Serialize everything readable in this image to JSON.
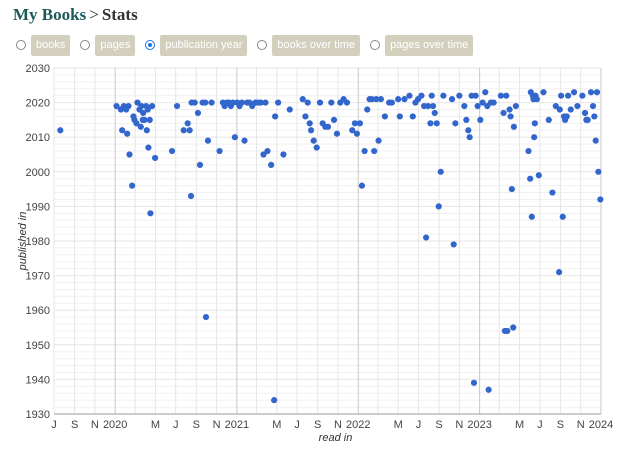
{
  "breadcrumb": {
    "root": "My Books",
    "separator": ">",
    "current": "Stats"
  },
  "tabs": [
    {
      "label": "books",
      "selected": false
    },
    {
      "label": "pages",
      "selected": false
    },
    {
      "label": "publication year",
      "selected": true
    },
    {
      "label": "books over time",
      "selected": false
    },
    {
      "label": "pages over time",
      "selected": false
    }
  ],
  "colors": {
    "point": "#3366cc",
    "grid": "#e6e6e6",
    "major_grid": "#c8c8c8",
    "tab_bg": "#d3cfbd",
    "brand": "#1c5a5a"
  },
  "chart_data": {
    "type": "scatter",
    "title": "",
    "xlabel": "read in",
    "ylabel": "published in",
    "ylim": [
      1930,
      2030
    ],
    "yticks": [
      1930,
      1940,
      1950,
      1960,
      1970,
      1980,
      1990,
      2000,
      2010,
      2020,
      2030
    ],
    "xlim": [
      "2019-07-01",
      "2024-01-01"
    ],
    "xticks": [
      {
        "date": "2019-07-01",
        "label": "J"
      },
      {
        "date": "2019-09-01",
        "label": "S"
      },
      {
        "date": "2019-11-01",
        "label": "N"
      },
      {
        "date": "2020-01-01",
        "label": "2020"
      },
      {
        "date": "2020-03-01",
        "label": ""
      },
      {
        "date": "2020-05-01",
        "label": "M"
      },
      {
        "date": "2020-07-01",
        "label": "J"
      },
      {
        "date": "2020-09-01",
        "label": "S"
      },
      {
        "date": "2020-11-01",
        "label": "N"
      },
      {
        "date": "2021-01-01",
        "label": "2021"
      },
      {
        "date": "2021-03-01",
        "label": ""
      },
      {
        "date": "2021-05-01",
        "label": "M"
      },
      {
        "date": "2021-07-01",
        "label": "J"
      },
      {
        "date": "2021-09-01",
        "label": "S"
      },
      {
        "date": "2021-11-01",
        "label": "N"
      },
      {
        "date": "2022-01-01",
        "label": "2022"
      },
      {
        "date": "2022-03-01",
        "label": ""
      },
      {
        "date": "2022-05-01",
        "label": "M"
      },
      {
        "date": "2022-07-01",
        "label": "J"
      },
      {
        "date": "2022-09-01",
        "label": "S"
      },
      {
        "date": "2022-11-01",
        "label": "N"
      },
      {
        "date": "2023-01-01",
        "label": "2023"
      },
      {
        "date": "2023-03-01",
        "label": ""
      },
      {
        "date": "2023-05-01",
        "label": "M"
      },
      {
        "date": "2023-07-01",
        "label": "J"
      },
      {
        "date": "2023-09-01",
        "label": "S"
      },
      {
        "date": "2023-11-01",
        "label": "N"
      },
      {
        "date": "2024-01-01",
        "label": "2024"
      }
    ],
    "points": [
      [
        "2019-07-20",
        2012
      ],
      [
        "2020-01-05",
        2019
      ],
      [
        "2020-01-18",
        2018
      ],
      [
        "2020-01-27",
        2019
      ],
      [
        "2020-02-03",
        2018
      ],
      [
        "2020-02-10",
        2019
      ],
      [
        "2020-01-22",
        2012
      ],
      [
        "2020-02-06",
        2011
      ],
      [
        "2020-02-13",
        2005
      ],
      [
        "2020-02-25",
        2016
      ],
      [
        "2020-02-28",
        2015
      ],
      [
        "2020-03-05",
        2014
      ],
      [
        "2020-02-21",
        1996
      ],
      [
        "2020-03-08",
        2020
      ],
      [
        "2020-03-14",
        2018
      ],
      [
        "2020-03-20",
        2019
      ],
      [
        "2020-03-25",
        2017
      ],
      [
        "2020-03-29",
        2015
      ],
      [
        "2020-04-03",
        2019
      ],
      [
        "2020-04-08",
        2018
      ],
      [
        "2020-03-18",
        2013
      ],
      [
        "2020-03-24",
        2015
      ],
      [
        "2020-04-05",
        2012
      ],
      [
        "2020-04-14",
        2015
      ],
      [
        "2020-04-21",
        2019
      ],
      [
        "2020-04-10",
        2007
      ],
      [
        "2020-04-30",
        2004
      ],
      [
        "2020-04-16",
        1988
      ],
      [
        "2020-06-20",
        2006
      ],
      [
        "2020-07-05",
        2019
      ],
      [
        "2020-07-25",
        2012
      ],
      [
        "2020-08-06",
        2014
      ],
      [
        "2020-08-12",
        2012
      ],
      [
        "2020-08-16",
        1993
      ],
      [
        "2020-08-18",
        2020
      ],
      [
        "2020-08-27",
        2020
      ],
      [
        "2020-09-06",
        2017
      ],
      [
        "2020-09-12",
        2002
      ],
      [
        "2020-09-20",
        2020
      ],
      [
        "2020-09-28",
        2020
      ],
      [
        "2020-10-06",
        2009
      ],
      [
        "2020-10-17",
        2020
      ],
      [
        "2020-09-30",
        1958
      ],
      [
        "2020-11-10",
        2006
      ],
      [
        "2020-11-20",
        2020
      ],
      [
        "2020-11-25",
        2019
      ],
      [
        "2020-12-02",
        2020
      ],
      [
        "2020-12-08",
        2020
      ],
      [
        "2020-12-14",
        2019
      ],
      [
        "2020-12-20",
        2020
      ],
      [
        "2020-12-26",
        2010
      ],
      [
        "2021-01-02",
        2020
      ],
      [
        "2021-01-09",
        2019
      ],
      [
        "2021-01-16",
        2020
      ],
      [
        "2021-01-24",
        2009
      ],
      [
        "2021-02-01",
        2020
      ],
      [
        "2021-02-08",
        2020
      ],
      [
        "2021-02-16",
        2019
      ],
      [
        "2021-02-26",
        2020
      ],
      [
        "2021-03-06",
        2020
      ],
      [
        "2021-03-14",
        2020
      ],
      [
        "2021-03-22",
        2005
      ],
      [
        "2021-03-28",
        2020
      ],
      [
        "2021-04-03",
        2006
      ],
      [
        "2021-04-14",
        2002
      ],
      [
        "2021-04-26",
        2016
      ],
      [
        "2021-05-05",
        2020
      ],
      [
        "2021-04-23",
        1934
      ],
      [
        "2021-05-21",
        2005
      ],
      [
        "2021-06-09",
        2018
      ],
      [
        "2021-07-18",
        2021
      ],
      [
        "2021-07-26",
        2016
      ],
      [
        "2021-08-02",
        2020
      ],
      [
        "2021-08-08",
        2014
      ],
      [
        "2021-08-12",
        2012
      ],
      [
        "2021-08-20",
        2009
      ],
      [
        "2021-08-29",
        2007
      ],
      [
        "2021-09-08",
        2020
      ],
      [
        "2021-09-16",
        2014
      ],
      [
        "2021-09-24",
        2013
      ],
      [
        "2021-10-02",
        2013
      ],
      [
        "2021-10-12",
        2020
      ],
      [
        "2021-10-20",
        2015
      ],
      [
        "2021-10-29",
        2011
      ],
      [
        "2021-11-08",
        2020
      ],
      [
        "2021-11-18",
        2021
      ],
      [
        "2021-11-28",
        2020
      ],
      [
        "2021-12-14",
        2012
      ],
      [
        "2021-12-22",
        2014
      ],
      [
        "2021-12-28",
        2011
      ],
      [
        "2022-01-06",
        2014
      ],
      [
        "2022-01-12",
        1996
      ],
      [
        "2022-01-20",
        2006
      ],
      [
        "2022-01-28",
        2018
      ],
      [
        "2022-02-04",
        2021
      ],
      [
        "2022-02-11",
        2021
      ],
      [
        "2022-02-18",
        2006
      ],
      [
        "2022-02-24",
        2021
      ],
      [
        "2022-03-03",
        2009
      ],
      [
        "2022-03-10",
        2021
      ],
      [
        "2022-03-22",
        2016
      ],
      [
        "2022-04-04",
        2020
      ],
      [
        "2022-04-12",
        2020
      ],
      [
        "2022-05-01",
        2021
      ],
      [
        "2022-05-06",
        2016
      ],
      [
        "2022-05-20",
        2021
      ],
      [
        "2022-06-04",
        2022
      ],
      [
        "2022-06-14",
        2016
      ],
      [
        "2022-06-22",
        2020
      ],
      [
        "2022-06-30",
        2021
      ],
      [
        "2022-07-10",
        2022
      ],
      [
        "2022-07-18",
        2019
      ],
      [
        "2022-07-24",
        1981
      ],
      [
        "2022-07-30",
        2019
      ],
      [
        "2022-08-06",
        2014
      ],
      [
        "2022-08-10",
        2022
      ],
      [
        "2022-08-14",
        2019
      ],
      [
        "2022-08-19",
        2017
      ],
      [
        "2022-08-25",
        2014
      ],
      [
        "2022-08-31",
        1990
      ],
      [
        "2022-09-06",
        2000
      ],
      [
        "2022-09-14",
        2022
      ],
      [
        "2022-10-10",
        2021
      ],
      [
        "2022-10-15",
        1979
      ],
      [
        "2022-10-20",
        2014
      ],
      [
        "2022-11-01",
        2022
      ],
      [
        "2022-11-16",
        2019
      ],
      [
        "2022-11-22",
        2015
      ],
      [
        "2022-11-28",
        2012
      ],
      [
        "2022-12-02",
        2010
      ],
      [
        "2022-12-08",
        2022
      ],
      [
        "2022-12-15",
        1939
      ],
      [
        "2022-12-20",
        2022
      ],
      [
        "2022-12-26",
        2019
      ],
      [
        "2023-01-03",
        2015
      ],
      [
        "2023-01-10",
        2020
      ],
      [
        "2023-01-18",
        2023
      ],
      [
        "2023-01-24",
        2019
      ],
      [
        "2023-01-28",
        1937
      ],
      [
        "2023-02-04",
        2020
      ],
      [
        "2023-02-12",
        2020
      ],
      [
        "2023-03-06",
        2022
      ],
      [
        "2023-03-14",
        2017
      ],
      [
        "2023-03-18",
        1954
      ],
      [
        "2023-03-22",
        2022
      ],
      [
        "2023-03-25",
        1954
      ],
      [
        "2023-04-01",
        2018
      ],
      [
        "2023-04-04",
        2016
      ],
      [
        "2023-04-08",
        1995
      ],
      [
        "2023-04-14",
        2013
      ],
      [
        "2023-04-12",
        1955
      ],
      [
        "2023-04-20",
        2019
      ],
      [
        "2023-05-28",
        2006
      ],
      [
        "2023-06-02",
        1998
      ],
      [
        "2023-06-04",
        2023
      ],
      [
        "2023-06-07",
        1987
      ],
      [
        "2023-06-10",
        2022
      ],
      [
        "2023-06-12",
        2021
      ],
      [
        "2023-06-14",
        2010
      ],
      [
        "2023-06-16",
        2014
      ],
      [
        "2023-06-18",
        2022
      ],
      [
        "2023-06-22",
        2021
      ],
      [
        "2023-06-28",
        1999
      ],
      [
        "2023-07-12",
        2023
      ],
      [
        "2023-07-28",
        2015
      ],
      [
        "2023-08-08",
        1994
      ],
      [
        "2023-08-18",
        2019
      ],
      [
        "2023-08-28",
        1971
      ],
      [
        "2023-08-30",
        2018
      ],
      [
        "2023-09-03",
        2022
      ],
      [
        "2023-09-08",
        1987
      ],
      [
        "2023-09-12",
        2016
      ],
      [
        "2023-09-15",
        2015
      ],
      [
        "2023-09-20",
        2016
      ],
      [
        "2023-09-24",
        2022
      ],
      [
        "2023-10-02",
        2018
      ],
      [
        "2023-10-12",
        2023
      ],
      [
        "2023-10-22",
        2019
      ],
      [
        "2023-11-06",
        2022
      ],
      [
        "2023-11-14",
        2017
      ],
      [
        "2023-11-18",
        2015
      ],
      [
        "2023-11-22",
        2015
      ],
      [
        "2023-12-02",
        2023
      ],
      [
        "2023-12-08",
        2019
      ],
      [
        "2023-12-12",
        2016
      ],
      [
        "2023-12-16",
        2009
      ],
      [
        "2023-12-20",
        2023
      ],
      [
        "2023-12-24",
        2000
      ],
      [
        "2023-12-30",
        1992
      ]
    ]
  }
}
